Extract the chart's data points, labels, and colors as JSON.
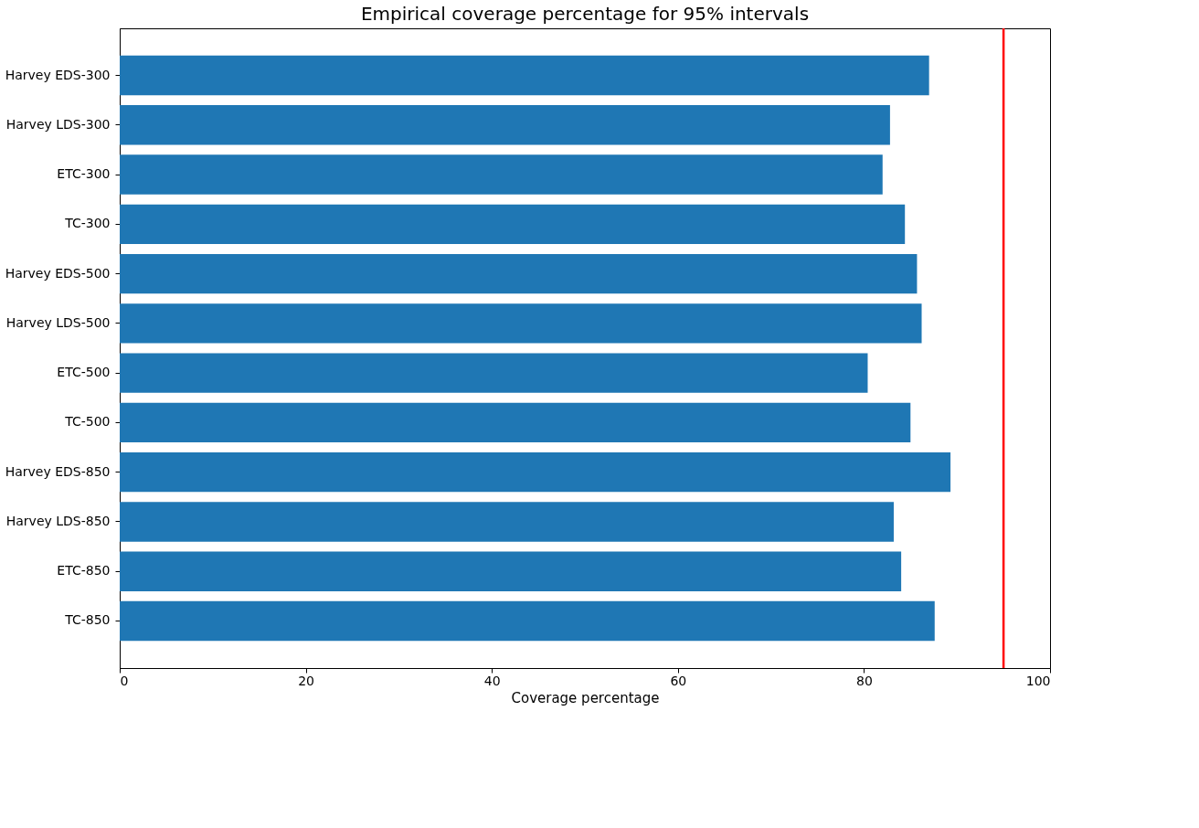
{
  "chart_data": {
    "type": "bar",
    "orientation": "horizontal",
    "title": "Empirical coverage percentage for 95% intervals",
    "xlabel": "Coverage percentage",
    "categories": [
      "Harvey EDS-300",
      "Harvey LDS-300",
      "ETC-300",
      "TC-300",
      "Harvey EDS-500",
      "Harvey LDS-500",
      "ETC-500",
      "TC-500",
      "Harvey EDS-850",
      "Harvey LDS-850",
      "ETC-850",
      "TC-850"
    ],
    "values": [
      87.0,
      82.8,
      82.0,
      84.4,
      85.7,
      86.2,
      80.4,
      85.0,
      89.3,
      83.2,
      84.0,
      87.6
    ],
    "color": "#1f77b4",
    "xlim": [
      0,
      100
    ],
    "xticks": [
      0,
      20,
      40,
      60,
      80,
      100
    ],
    "ref_lines": [
      {
        "axis": "x",
        "value": 95,
        "color": "#ff0000"
      }
    ],
    "grid": false
  }
}
